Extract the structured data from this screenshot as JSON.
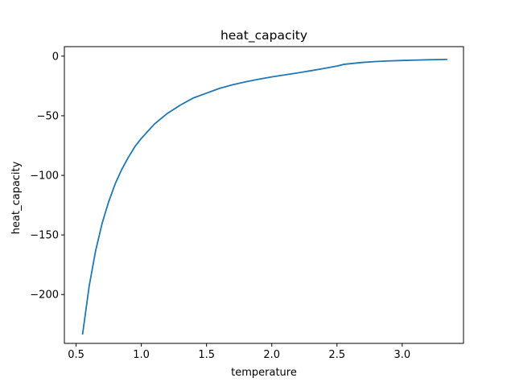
{
  "chart_data": {
    "type": "line",
    "title": "heat_capacity",
    "xlabel": "temperature",
    "ylabel": "heat_capacity",
    "xlim": [
      0.41,
      3.47
    ],
    "ylim": [
      -241,
      8
    ],
    "xticks": [
      0.5,
      1.0,
      1.5,
      2.0,
      2.5,
      3.0
    ],
    "xtick_labels": [
      "0.5",
      "1.0",
      "1.5",
      "2.0",
      "2.5",
      "3.0"
    ],
    "yticks": [
      0,
      -50,
      -100,
      -150,
      -200
    ],
    "ytick_labels": [
      "0",
      "−50",
      "−100",
      "−150",
      "−200"
    ],
    "grid": false,
    "series": [
      {
        "color": "#1f77b4",
        "x": [
          0.55,
          0.6,
          0.65,
          0.7,
          0.75,
          0.8,
          0.85,
          0.9,
          0.95,
          1.0,
          1.1,
          1.2,
          1.3,
          1.4,
          1.5,
          1.6,
          1.7,
          1.8,
          1.9,
          2.0,
          2.1,
          2.2,
          2.3,
          2.4,
          2.5,
          2.55,
          2.6,
          2.7,
          2.8,
          2.9,
          3.0,
          3.1,
          3.2,
          3.34
        ],
        "y": [
          -233,
          -193,
          -163,
          -140,
          -122,
          -107,
          -95,
          -85,
          -76,
          -69,
          -57,
          -48,
          -41,
          -35,
          -31,
          -27,
          -24,
          -21.5,
          -19.3,
          -17.4,
          -15.7,
          -14.0,
          -12.2,
          -10.3,
          -8.3,
          -6.9,
          -6.3,
          -5.2,
          -4.5,
          -4.0,
          -3.6,
          -3.3,
          -3.0,
          -2.7
        ]
      }
    ]
  }
}
